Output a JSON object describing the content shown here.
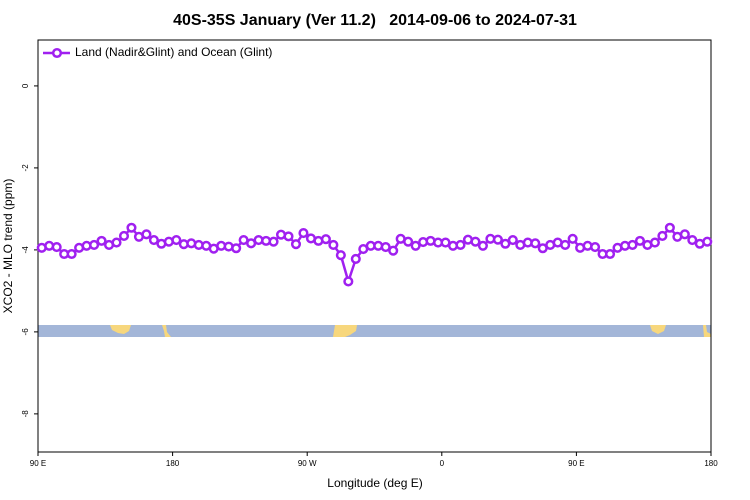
{
  "chart_data": {
    "type": "line",
    "title": "40S-35S January (Ver 11.2)   2014-09-06 to 2024-07-31",
    "xlabel": "Longitude (deg E)",
    "ylabel": "XCO2 - MLO trend (ppm)",
    "xlim": [
      90,
      540
    ],
    "ylim": [
      -8.93,
      1.12
    ],
    "xticks": [
      {
        "value": 90,
        "label": "90 E"
      },
      180,
      {
        "value": 270,
        "label": "90 W"
      },
      {
        "value": 360,
        "label": "0"
      },
      {
        "value": 450,
        "label": "90 E"
      },
      {
        "value": 540,
        "label": "180"
      }
    ],
    "yticks": [
      0,
      -2,
      -4,
      -6,
      -8
    ],
    "legend": "top-left",
    "x": [
      92.5,
      97.5,
      102.5,
      107.5,
      112.5,
      117.5,
      122.5,
      127.5,
      132.5,
      137.5,
      142.5,
      147.5,
      152.5,
      157.5,
      162.5,
      167.5,
      172.5,
      177.5,
      182.5,
      187.5,
      192.5,
      197.5,
      202.5,
      207.5,
      212.5,
      217.5,
      222.5,
      227.5,
      232.5,
      237.5,
      242.5,
      247.5,
      252.5,
      257.5,
      262.5,
      267.5,
      272.5,
      277.5,
      282.5,
      287.5,
      292.5,
      297.5,
      302.5,
      307.5,
      312.5,
      317.5,
      322.5,
      327.5,
      332.5,
      337.5,
      342.5,
      347.5,
      352.5,
      357.5,
      362.5,
      367.5,
      372.5,
      377.5,
      382.5,
      387.5,
      392.5,
      397.5,
      402.5,
      407.5,
      412.5,
      417.5,
      422.5,
      427.5,
      432.5,
      437.5,
      442.5,
      447.5,
      452.5,
      457.5,
      462.5,
      467.5,
      472.5,
      477.5,
      482.5,
      487.5,
      492.5,
      497.5,
      502.5,
      507.5,
      512.5,
      517.5,
      522.5,
      527.5,
      532.5,
      537.5
    ],
    "series": [
      {
        "name": "Land (Nadir&Glint) and Ocean (Glint)",
        "color": "#a020f0",
        "values": [
          -3.95,
          -3.9,
          -3.93,
          -4.1,
          -4.1,
          -3.95,
          -3.9,
          -3.88,
          -3.78,
          -3.88,
          -3.82,
          -3.66,
          -3.46,
          -3.68,
          -3.62,
          -3.76,
          -3.85,
          -3.8,
          -3.76,
          -3.86,
          -3.84,
          -3.88,
          -3.9,
          -3.97,
          -3.9,
          -3.92,
          -3.96,
          -3.76,
          -3.84,
          -3.76,
          -3.78,
          -3.8,
          -3.63,
          -3.67,
          -3.86,
          -3.59,
          -3.72,
          -3.78,
          -3.74,
          -3.88,
          -4.13,
          -4.77,
          -4.22,
          -3.98,
          -3.9,
          -3.9,
          -3.93,
          -4.02,
          -3.73,
          -3.8,
          -3.9,
          -3.81,
          -3.78,
          -3.82,
          -3.82,
          -3.9,
          -3.88,
          -3.75,
          -3.8,
          -3.9,
          -3.73,
          -3.75,
          -3.85,
          -3.76,
          -3.88,
          -3.82,
          -3.84,
          -3.96,
          -3.88,
          -3.82,
          -3.88,
          -3.73,
          -3.95,
          -3.9,
          -3.93,
          -4.1,
          -4.1,
          -3.95,
          -3.9,
          -3.88,
          -3.78,
          -3.88,
          -3.82,
          -3.66,
          -3.46,
          -3.68,
          -3.62,
          -3.76,
          -3.85,
          -3.8
        ]
      }
    ]
  }
}
